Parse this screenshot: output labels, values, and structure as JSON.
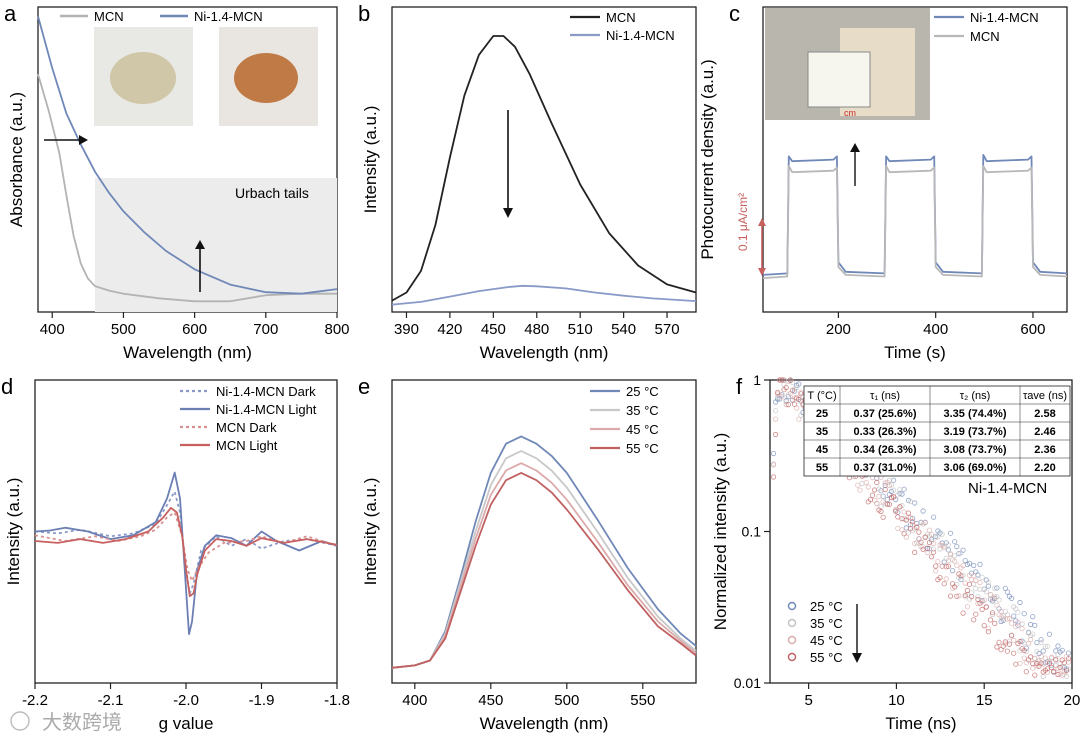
{
  "panels": {
    "a": {
      "letter": "a",
      "xlabel": "Wavelength (nm)",
      "ylabel": "Absorbance (a.u.)",
      "xlim": [
        380,
        800
      ],
      "ylim": [
        0,
        1
      ],
      "xticks": [
        400,
        500,
        600,
        700,
        800
      ],
      "legend": [
        "MCN",
        "Ni-1.4-MCN"
      ],
      "annotation": "Urbach tails",
      "region": [
        460,
        800
      ],
      "photos": [
        "MCN powder photo",
        "Ni-1.4-MCN powder photo"
      ],
      "series": [
        {
          "name": "MCN",
          "color": "#b3b3b3",
          "x": [
            380,
            395,
            410,
            420,
            430,
            440,
            450,
            460,
            480,
            500,
            550,
            600,
            650,
            700,
            750,
            800
          ],
          "y": [
            0.78,
            0.66,
            0.52,
            0.38,
            0.25,
            0.16,
            0.11,
            0.085,
            0.07,
            0.06,
            0.045,
            0.035,
            0.035,
            0.055,
            0.06,
            0.06
          ]
        },
        {
          "name": "Ni-1.4-MCN",
          "color": "#7088b8",
          "x": [
            380,
            400,
            420,
            440,
            460,
            480,
            500,
            530,
            560,
            600,
            650,
            700,
            750,
            800
          ],
          "y": [
            0.97,
            0.8,
            0.65,
            0.55,
            0.46,
            0.39,
            0.33,
            0.26,
            0.2,
            0.14,
            0.09,
            0.065,
            0.06,
            0.075
          ]
        }
      ]
    },
    "b": {
      "letter": "b",
      "xlabel": "Wavelength (nm)",
      "ylabel": "Intensity (a.u.)",
      "xlim": [
        380,
        590
      ],
      "ylim": [
        0,
        1
      ],
      "xticks": [
        390,
        420,
        450,
        480,
        510,
        540,
        570
      ],
      "legend": [
        "MCN",
        "Ni-1.4-MCN"
      ],
      "series": [
        {
          "name": "MCN",
          "color": "#222222",
          "x": [
            380,
            390,
            400,
            410,
            420,
            430,
            440,
            450,
            457,
            465,
            475,
            490,
            510,
            530,
            550,
            570,
            590
          ],
          "y": [
            0.02,
            0.05,
            0.13,
            0.3,
            0.55,
            0.78,
            0.93,
            1.0,
            1.0,
            0.96,
            0.86,
            0.68,
            0.45,
            0.27,
            0.15,
            0.08,
            0.05
          ]
        },
        {
          "name": "Ni-1.4-MCN",
          "color": "#8a9ac8",
          "x": [
            380,
            400,
            420,
            440,
            460,
            470,
            480,
            500,
            520,
            540,
            560,
            590
          ],
          "y": [
            0.005,
            0.015,
            0.035,
            0.055,
            0.07,
            0.075,
            0.073,
            0.065,
            0.05,
            0.038,
            0.028,
            0.018
          ]
        }
      ]
    },
    "c": {
      "letter": "c",
      "xlabel": "Time (s)",
      "ylabel": "Photocurrent density (a.u.)",
      "xlim": [
        45,
        670
      ],
      "ylim": [
        0,
        1
      ],
      "xticks": [
        200,
        400,
        600
      ],
      "legend": [
        "Ni-1.4-MCN",
        "MCN"
      ],
      "scalebar_label": "0.1 μA/cm²",
      "series": [
        {
          "name": "Ni-1.4-MCN",
          "color": "#7088b8",
          "x": [
            45,
            95,
            98,
            105,
            190,
            197,
            200,
            215,
            295,
            298,
            305,
            390,
            397,
            400,
            415,
            495,
            498,
            505,
            590,
            597,
            600,
            615,
            670
          ],
          "y": [
            0.07,
            0.08,
            0.82,
            0.79,
            0.8,
            0.82,
            0.15,
            0.09,
            0.08,
            0.82,
            0.79,
            0.8,
            0.82,
            0.15,
            0.09,
            0.08,
            0.83,
            0.79,
            0.8,
            0.82,
            0.15,
            0.09,
            0.08
          ]
        },
        {
          "name": "MCN",
          "color": "#b8b8b8",
          "x": [
            45,
            95,
            98,
            105,
            190,
            197,
            200,
            215,
            295,
            298,
            305,
            390,
            397,
            400,
            415,
            495,
            498,
            505,
            590,
            597,
            600,
            615,
            670
          ],
          "y": [
            0.05,
            0.06,
            0.76,
            0.72,
            0.73,
            0.75,
            0.12,
            0.07,
            0.06,
            0.76,
            0.72,
            0.73,
            0.75,
            0.12,
            0.07,
            0.06,
            0.76,
            0.72,
            0.73,
            0.75,
            0.12,
            0.07,
            0.06
          ]
        }
      ]
    },
    "d": {
      "letter": "d",
      "xlabel": "g value",
      "ylabel": "Intensity (a.u.)",
      "xlim": [
        -2.2,
        -1.8
      ],
      "ylim": [
        -1,
        1
      ],
      "xticks": [
        -2.2,
        -2.1,
        -2.0,
        -1.9,
        -1.8
      ],
      "xtick_labels": [
        "-2.2",
        "-2.1",
        "-2.0",
        "-1.9",
        "-1.8"
      ],
      "legend": [
        "Ni-1.4-MCN Dark",
        "Ni-1.4-MCN Light",
        "MCN Dark",
        "MCN Light"
      ],
      "series": [
        {
          "name": "Ni-1.4-MCN Dark",
          "color": "#8a9ac8",
          "dash": true,
          "x": [
            -2.2,
            -2.17,
            -2.14,
            -2.1,
            -2.07,
            -2.04,
            -2.025,
            -2.015,
            -2.008,
            -2.0,
            -1.995,
            -1.99,
            -1.98,
            -1.96,
            -1.94,
            -1.92,
            -1.9,
            -1.87,
            -1.84,
            -1.8
          ],
          "y": [
            0.1,
            0.08,
            0.12,
            0.05,
            0.08,
            0.18,
            0.38,
            0.52,
            0.3,
            -0.3,
            -0.55,
            -0.45,
            -0.1,
            0.05,
            -0.05,
            0.02,
            -0.08,
            0.0,
            0.02,
            -0.05
          ]
        },
        {
          "name": "Ni-1.4-MCN Light",
          "color": "#6c7fb4",
          "x": [
            -2.2,
            -2.18,
            -2.16,
            -2.13,
            -2.1,
            -2.07,
            -2.04,
            -2.025,
            -2.015,
            -2.008,
            -2.0,
            -1.996,
            -1.992,
            -1.985,
            -1.975,
            -1.96,
            -1.94,
            -1.92,
            -1.9,
            -1.88,
            -1.85,
            -1.82,
            -1.8
          ],
          "y": [
            0.1,
            0.11,
            0.14,
            0.1,
            0.02,
            0.06,
            0.2,
            0.45,
            0.72,
            0.45,
            -0.5,
            -0.98,
            -0.85,
            -0.3,
            -0.05,
            0.06,
            0.03,
            -0.05,
            0.1,
            0.0,
            -0.1,
            0.0,
            -0.05
          ]
        },
        {
          "name": "MCN Dark",
          "color": "#d89090",
          "dash": true,
          "x": [
            -2.2,
            -2.16,
            -2.12,
            -2.09,
            -2.06,
            -2.04,
            -2.025,
            -2.015,
            -2.005,
            -1.998,
            -1.992,
            -1.985,
            -1.97,
            -1.95,
            -1.92,
            -1.9,
            -1.87,
            -1.84,
            -1.8
          ],
          "y": [
            0.06,
            0.0,
            0.05,
            0.0,
            0.05,
            0.12,
            0.25,
            0.3,
            0.05,
            -0.3,
            -0.42,
            -0.3,
            -0.12,
            -0.02,
            0.0,
            0.05,
            -0.02,
            0.05,
            -0.05
          ]
        },
        {
          "name": "MCN Light",
          "color": "#c86060",
          "x": [
            -2.2,
            -2.17,
            -2.14,
            -2.11,
            -2.08,
            -2.05,
            -2.03,
            -2.02,
            -2.012,
            -2.005,
            -2.0,
            -1.995,
            -1.99,
            -1.985,
            -1.975,
            -1.96,
            -1.94,
            -1.92,
            -1.9,
            -1.87,
            -1.84,
            -1.8
          ],
          "y": [
            0.0,
            -0.02,
            0.02,
            -0.02,
            0.02,
            0.1,
            0.25,
            0.35,
            0.3,
            0.05,
            -0.3,
            -0.58,
            -0.55,
            -0.35,
            -0.1,
            0.02,
            0.0,
            -0.05,
            0.03,
            -0.02,
            0.02,
            -0.04
          ]
        }
      ]
    },
    "e": {
      "letter": "e",
      "xlabel": "Wavelength (nm)",
      "ylabel": "Intensity (a.u.)",
      "xlim": [
        385,
        585
      ],
      "ylim": [
        0,
        1.1
      ],
      "xticks": [
        400,
        450,
        500,
        550
      ],
      "legend": [
        "25 °C",
        "35 °C",
        "45 °C",
        "55 °C"
      ],
      "series": [
        {
          "name": "25 °C",
          "color": "#7088b8",
          "x": [
            385,
            400,
            410,
            420,
            430,
            440,
            450,
            460,
            470,
            480,
            490,
            500,
            520,
            540,
            560,
            575,
            585
          ],
          "y": [
            0.05,
            0.06,
            0.08,
            0.2,
            0.42,
            0.65,
            0.85,
            0.97,
            1.0,
            0.97,
            0.92,
            0.85,
            0.66,
            0.46,
            0.29,
            0.19,
            0.14
          ]
        },
        {
          "name": "35 °C",
          "color": "#c8c8c8",
          "x": [
            385,
            400,
            410,
            420,
            430,
            440,
            450,
            460,
            470,
            480,
            490,
            500,
            520,
            540,
            560,
            575,
            585
          ],
          "y": [
            0.05,
            0.06,
            0.08,
            0.19,
            0.4,
            0.61,
            0.8,
            0.91,
            0.94,
            0.91,
            0.86,
            0.79,
            0.61,
            0.42,
            0.26,
            0.17,
            0.12
          ]
        },
        {
          "name": "45 °C",
          "color": "#dcaaaa",
          "x": [
            385,
            400,
            410,
            420,
            430,
            440,
            450,
            460,
            470,
            480,
            490,
            500,
            520,
            540,
            560,
            575,
            585
          ],
          "y": [
            0.05,
            0.06,
            0.08,
            0.18,
            0.38,
            0.58,
            0.76,
            0.86,
            0.89,
            0.86,
            0.81,
            0.74,
            0.57,
            0.39,
            0.24,
            0.16,
            0.11
          ]
        },
        {
          "name": "55 °C",
          "color": "#c06060",
          "x": [
            385,
            400,
            410,
            420,
            430,
            440,
            450,
            460,
            470,
            480,
            490,
            500,
            520,
            540,
            560,
            575,
            585
          ],
          "y": [
            0.05,
            0.06,
            0.08,
            0.17,
            0.36,
            0.55,
            0.72,
            0.82,
            0.85,
            0.82,
            0.77,
            0.7,
            0.54,
            0.37,
            0.22,
            0.15,
            0.1
          ]
        }
      ]
    },
    "f": {
      "letter": "f",
      "xlabel": "Time (ns)",
      "ylabel": "Normalized intensity (a.u.)",
      "xlim": [
        2.8,
        20
      ],
      "yscale": "log",
      "ylim": [
        0.01,
        1
      ],
      "xticks": [
        5,
        10,
        15,
        20
      ],
      "yticks": [
        0.01,
        0.1,
        1
      ],
      "ytick_labels": [
        "0.01",
        "0.1",
        "1"
      ],
      "sample_label": "Ni-1.4-MCN",
      "legend": [
        "25 °C",
        "35 °C",
        "45 °C",
        "55 °C"
      ],
      "colors": [
        "#7088b8",
        "#c0c0c0",
        "#dcaaaa",
        "#c06060"
      ],
      "decay_ns": [
        2.58,
        2.46,
        2.36,
        2.2
      ],
      "table": {
        "headers": [
          "T (°C)",
          "τ₁ (ns)",
          "τ₂ (ns)",
          "τave (ns)"
        ],
        "rows": [
          [
            "25",
            "0.37 (25.6%)",
            "3.35 (74.4%)",
            "2.58"
          ],
          [
            "35",
            "0.33 (26.3%)",
            "3.19 (73.7%)",
            "2.46"
          ],
          [
            "45",
            "0.34 (26.3%)",
            "3.08 (73.7%)",
            "2.36"
          ],
          [
            "55",
            "0.37 (31.0%)",
            "3.06 (69.0%)",
            "2.20"
          ]
        ]
      }
    }
  },
  "watermark": "大数跨境"
}
